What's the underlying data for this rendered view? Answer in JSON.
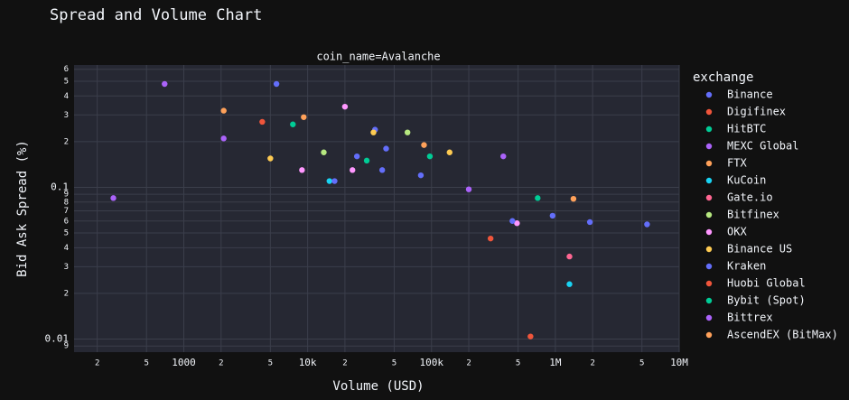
{
  "chart_data": {
    "type": "scatter",
    "title": "Spread and Volume Chart",
    "facet_label": "coin_name=Avalanche",
    "xlabel": "Volume (USD)",
    "ylabel": "Bid Ask Spread (%)",
    "legend_title": "exchange",
    "legend_position": "right",
    "log_x": true,
    "log_y": true,
    "grid": true,
    "xlim": [
      130,
      10000000
    ],
    "ylim": [
      0.0082,
      0.64
    ],
    "xticks": [
      {
        "value": 200,
        "label": "2"
      },
      {
        "value": 500,
        "label": "5"
      },
      1000,
      {
        "value": 2000,
        "label": "2"
      },
      {
        "value": 5000,
        "label": "5"
      },
      {
        "value": 10000,
        "label": "10k"
      },
      {
        "value": 20000,
        "label": "2"
      },
      {
        "value": 50000,
        "label": "5"
      },
      {
        "value": 100000,
        "label": "100k"
      },
      {
        "value": 200000,
        "label": "2"
      },
      {
        "value": 500000,
        "label": "5"
      },
      {
        "value": 1000000,
        "label": "1M"
      },
      {
        "value": 2000000,
        "label": "2"
      },
      {
        "value": 5000000,
        "label": "5"
      },
      {
        "value": 10000000,
        "label": "10M"
      }
    ],
    "yticks": [
      {
        "value": 0.6,
        "label": "6"
      },
      {
        "value": 0.5,
        "label": "5"
      },
      {
        "value": 0.4,
        "label": "4"
      },
      {
        "value": 0.3,
        "label": "3"
      },
      {
        "value": 0.2,
        "label": "2"
      },
      0.1,
      {
        "value": 0.09,
        "label": "9"
      },
      {
        "value": 0.08,
        "label": "8"
      },
      {
        "value": 0.07,
        "label": "7"
      },
      {
        "value": 0.06,
        "label": "6"
      },
      {
        "value": 0.05,
        "label": "5"
      },
      {
        "value": 0.04,
        "label": "4"
      },
      {
        "value": 0.03,
        "label": "3"
      },
      {
        "value": 0.02,
        "label": "2"
      },
      0.01,
      {
        "value": 0.009,
        "label": "9"
      }
    ],
    "series": [
      {
        "name": "Binance",
        "color": "#636efa",
        "x": [
          5600,
          35000,
          43000,
          25000,
          82000
        ],
        "values": [
          0.48,
          0.24,
          0.18,
          0.16,
          0.12
        ]
      },
      {
        "name": "Digifinex",
        "color": "#ef553b",
        "x": [
          4300,
          300000
        ],
        "values": [
          0.27,
          0.046
        ]
      },
      {
        "name": "HitBTC",
        "color": "#00cc96",
        "x": [
          7600,
          97000
        ],
        "values": [
          0.26,
          0.16
        ]
      },
      {
        "name": "MEXC Global",
        "color": "#ab63fa",
        "x": [
          2100,
          200000
        ],
        "values": [
          0.21,
          0.097
        ]
      },
      {
        "name": "FTX",
        "color": "#ffa15a",
        "x": [
          2100,
          87000
        ],
        "values": [
          0.32,
          0.19
        ]
      },
      {
        "name": "KuCoin",
        "color": "#19d3f3",
        "x": [
          15000,
          1300000
        ],
        "values": [
          0.11,
          0.023
        ]
      },
      {
        "name": "Gate.io",
        "color": "#ff6692",
        "x": [
          1300000
        ],
        "values": [
          0.035
        ]
      },
      {
        "name": "Bitfinex",
        "color": "#b6e880",
        "x": [
          13500,
          64000
        ],
        "values": [
          0.17,
          0.23
        ]
      },
      {
        "name": "OKX",
        "color": "#ff97ff",
        "x": [
          9000,
          20000,
          23000,
          490000
        ],
        "values": [
          0.13,
          0.34,
          0.13,
          0.058
        ]
      },
      {
        "name": "Binance US",
        "color": "#fecb52",
        "x": [
          5000,
          34000,
          140000
        ],
        "values": [
          0.155,
          0.23,
          0.17
        ]
      },
      {
        "name": "Kraken",
        "color": "#636efa",
        "x": [
          16500,
          40000,
          450000,
          950000,
          1900000,
          5500000
        ],
        "values": [
          0.11,
          0.13,
          0.06,
          0.065,
          0.059,
          0.057
        ]
      },
      {
        "name": "Huobi Global",
        "color": "#ef553b",
        "x": [
          630000
        ],
        "values": [
          0.0104
        ]
      },
      {
        "name": "Bybit (Spot)",
        "color": "#00cc96",
        "x": [
          30000,
          720000
        ],
        "values": [
          0.15,
          0.085
        ]
      },
      {
        "name": "Bittrex",
        "color": "#ab63fa",
        "x": [
          270,
          700,
          380000
        ],
        "values": [
          0.085,
          0.48,
          0.16
        ]
      },
      {
        "name": "AscendEX (BitMax)",
        "color": "#ffa15a",
        "x": [
          9300,
          1400000
        ],
        "values": [
          0.29,
          0.084
        ]
      }
    ]
  }
}
